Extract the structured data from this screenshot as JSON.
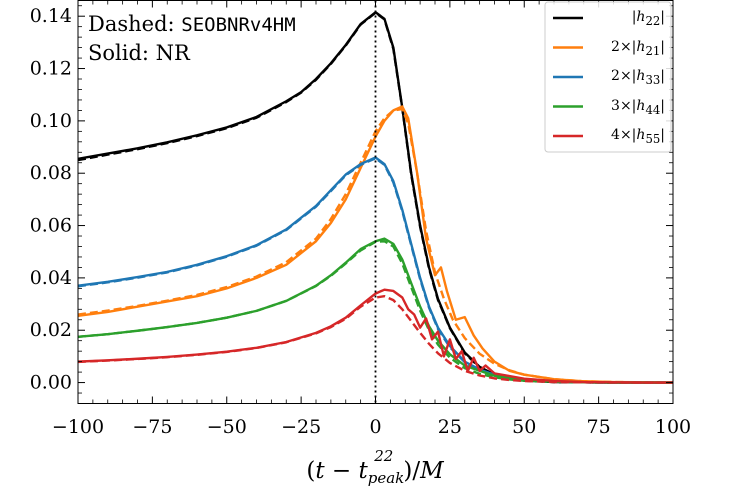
{
  "chart_data": {
    "type": "line",
    "xlabel": "(t − t_peak^22)/M",
    "ylabel": "",
    "xlim": [
      -100,
      100
    ],
    "ylim": [
      -0.008,
      0.146
    ],
    "xticks": [
      -100,
      -75,
      -50,
      -25,
      0,
      25,
      50,
      75,
      100
    ],
    "xtick_labels": [
      "−100",
      "−75",
      "−50",
      "−25",
      "0",
      "25",
      "50",
      "75",
      "100"
    ],
    "yticks": [
      0.0,
      0.02,
      0.04,
      0.06,
      0.08,
      0.1,
      0.12,
      0.14
    ],
    "ytick_labels": [
      "0.00",
      "0.02",
      "0.04",
      "0.06",
      "0.08",
      "0.10",
      "0.12",
      "0.14"
    ],
    "grid": false,
    "legend_position": "top-right",
    "annotations": {
      "dashed_prefix": "Dashed: ",
      "dashed_model": "SEOBNRv4HM",
      "solid": "Solid: NR"
    },
    "peak_marker_x": 0,
    "series": [
      {
        "name": "|h22|",
        "legend_html": "|<i>h</i><sub>22</sub>|",
        "color": "#000000",
        "nr": {
          "x": [
            -100,
            -90,
            -80,
            -70,
            -60,
            -50,
            -40,
            -30,
            -25,
            -20,
            -15,
            -10,
            -5,
            0,
            3,
            6,
            9,
            12,
            15,
            18,
            21,
            25,
            30,
            35,
            40,
            50,
            60,
            70,
            80,
            90,
            100
          ],
          "y": [
            0.0855,
            0.0875,
            0.0895,
            0.0918,
            0.0945,
            0.0975,
            0.1015,
            0.1075,
            0.111,
            0.116,
            0.122,
            0.129,
            0.137,
            0.1415,
            0.139,
            0.128,
            0.105,
            0.08,
            0.06,
            0.044,
            0.032,
            0.021,
            0.0115,
            0.006,
            0.003,
            0.0008,
            0.0002,
            0.0001,
            0.0,
            0.0,
            0.0
          ]
        },
        "seob": {
          "x": [
            -100,
            -90,
            -80,
            -70,
            -60,
            -50,
            -40,
            -30,
            -25,
            -20,
            -15,
            -10,
            -5,
            0,
            3,
            6,
            9,
            12,
            15,
            18,
            21,
            25,
            30,
            35,
            40,
            50,
            60,
            70,
            80,
            90,
            100
          ],
          "y": [
            0.085,
            0.0871,
            0.0892,
            0.0915,
            0.0942,
            0.0972,
            0.1012,
            0.1072,
            0.1108,
            0.1157,
            0.1218,
            0.1288,
            0.1368,
            0.1413,
            0.1388,
            0.1275,
            0.1048,
            0.0795,
            0.0595,
            0.0435,
            0.0316,
            0.0208,
            0.0112,
            0.0058,
            0.0029,
            0.0007,
            0.0002,
            0.0001,
            0.0,
            0.0,
            0.0
          ]
        }
      },
      {
        "name": "2×|h21|",
        "legend_html": "2×|<i>h</i><sub>21</sub>|",
        "color": "#ff7f0e",
        "nr": {
          "x": [
            -100,
            -90,
            -80,
            -70,
            -60,
            -50,
            -40,
            -30,
            -20,
            -15,
            -10,
            -5,
            0,
            3,
            6,
            9,
            11,
            14,
            17,
            20,
            22,
            24,
            27,
            30,
            33,
            36,
            40,
            45,
            50,
            60,
            70,
            80,
            90,
            100
          ],
          "y": [
            0.0255,
            0.027,
            0.029,
            0.031,
            0.033,
            0.036,
            0.04,
            0.045,
            0.054,
            0.061,
            0.07,
            0.082,
            0.094,
            0.1,
            0.104,
            0.1055,
            0.101,
            0.08,
            0.055,
            0.041,
            0.044,
            0.035,
            0.024,
            0.025,
            0.018,
            0.013,
            0.008,
            0.0045,
            0.003,
            0.0013,
            0.0005,
            0.0002,
            0.0001,
            0.0
          ]
        },
        "seob": {
          "x": [
            -100,
            -90,
            -80,
            -70,
            -60,
            -50,
            -40,
            -30,
            -20,
            -15,
            -10,
            -5,
            0,
            3,
            6,
            9,
            11,
            14,
            17,
            20,
            23,
            26,
            30,
            35,
            40,
            45,
            50,
            60,
            70,
            80,
            90,
            100
          ],
          "y": [
            0.026,
            0.0275,
            0.0293,
            0.0313,
            0.0335,
            0.0365,
            0.0405,
            0.046,
            0.055,
            0.0625,
            0.072,
            0.084,
            0.096,
            0.101,
            0.104,
            0.1045,
            0.099,
            0.08,
            0.058,
            0.042,
            0.032,
            0.024,
            0.017,
            0.011,
            0.0072,
            0.0047,
            0.003,
            0.0013,
            0.0005,
            0.0002,
            0.0001,
            0.0
          ]
        }
      },
      {
        "name": "2×|h33|",
        "legend_html": "2×|<i>h</i><sub>33</sub>|",
        "color": "#1f77b4",
        "nr": {
          "x": [
            -100,
            -90,
            -80,
            -70,
            -60,
            -50,
            -40,
            -30,
            -20,
            -15,
            -10,
            -5,
            0,
            3,
            6,
            9,
            12,
            15,
            18,
            21,
            25,
            30,
            35,
            40,
            45,
            50,
            60,
            70,
            80,
            90,
            100
          ],
          "y": [
            0.037,
            0.0385,
            0.0403,
            0.0423,
            0.045,
            0.0483,
            0.0525,
            0.0585,
            0.0675,
            0.0735,
            0.0795,
            0.0835,
            0.086,
            0.0835,
            0.077,
            0.066,
            0.053,
            0.04,
            0.029,
            0.021,
            0.014,
            0.008,
            0.005,
            0.003,
            0.0018,
            0.0011,
            0.0004,
            0.0001,
            0.0,
            0.0,
            0.0
          ]
        },
        "seob": {
          "x": [
            -100,
            -90,
            -80,
            -70,
            -60,
            -50,
            -40,
            -30,
            -20,
            -15,
            -10,
            -5,
            0,
            3,
            6,
            9,
            12,
            15,
            18,
            21,
            25,
            30,
            35,
            40,
            45,
            50,
            60,
            70,
            80,
            90,
            100
          ],
          "y": [
            0.0368,
            0.0383,
            0.0401,
            0.0421,
            0.0448,
            0.0481,
            0.0523,
            0.0583,
            0.0672,
            0.0732,
            0.0792,
            0.0832,
            0.0857,
            0.0832,
            0.0765,
            0.0655,
            0.0525,
            0.0395,
            0.0286,
            0.0205,
            0.0135,
            0.0078,
            0.0048,
            0.0029,
            0.0017,
            0.001,
            0.0004,
            0.0001,
            0.0,
            0.0,
            0.0
          ]
        }
      },
      {
        "name": "3×|h44|",
        "legend_html": "3×|<i>h</i><sub>44</sub>|",
        "color": "#2ca02c",
        "nr": {
          "x": [
            -100,
            -90,
            -80,
            -70,
            -60,
            -50,
            -40,
            -30,
            -20,
            -15,
            -10,
            -5,
            0,
            3,
            6,
            9,
            12,
            15,
            18,
            21,
            25,
            30,
            35,
            40,
            45,
            50,
            60,
            70,
            80,
            90,
            100
          ],
          "y": [
            0.0175,
            0.0185,
            0.0198,
            0.0212,
            0.0228,
            0.0248,
            0.0274,
            0.0312,
            0.037,
            0.041,
            0.0458,
            0.051,
            0.054,
            0.055,
            0.053,
            0.047,
            0.038,
            0.029,
            0.0215,
            0.016,
            0.0108,
            0.0065,
            0.0045,
            0.0026,
            0.0018,
            0.001,
            0.0004,
            0.0001,
            0.0,
            0.0,
            0.0
          ]
        },
        "seob": {
          "x": [
            -100,
            -90,
            -80,
            -70,
            -60,
            -50,
            -40,
            -30,
            -20,
            -15,
            -10,
            -5,
            0,
            3,
            6,
            9,
            12,
            15,
            18,
            21,
            25,
            30,
            35,
            40,
            45,
            50,
            60,
            70,
            80,
            90,
            100
          ],
          "y": [
            0.0175,
            0.0185,
            0.0198,
            0.0212,
            0.0228,
            0.0248,
            0.0274,
            0.0312,
            0.0369,
            0.0408,
            0.0455,
            0.0505,
            0.0538,
            0.054,
            0.052,
            0.0455,
            0.0365,
            0.0275,
            0.02,
            0.0145,
            0.0095,
            0.0055,
            0.0033,
            0.002,
            0.0012,
            0.0007,
            0.0003,
            0.0001,
            0.0,
            0.0,
            0.0
          ]
        }
      },
      {
        "name": "4×|h55|",
        "legend_html": "4×|<i>h</i><sub>55</sub>|",
        "color": "#d62728",
        "nr": {
          "x": [
            -100,
            -90,
            -80,
            -70,
            -60,
            -50,
            -40,
            -30,
            -20,
            -15,
            -10,
            -5,
            0,
            3,
            6,
            9,
            11,
            13,
            15,
            17,
            19,
            21,
            23,
            25,
            27,
            29,
            31,
            33,
            35,
            37,
            40,
            45,
            50,
            60,
            70,
            80,
            90,
            100
          ],
          "y": [
            0.008,
            0.0085,
            0.0091,
            0.0098,
            0.0107,
            0.0118,
            0.0133,
            0.0155,
            0.019,
            0.0215,
            0.0248,
            0.0295,
            0.034,
            0.0355,
            0.035,
            0.0325,
            0.028,
            0.026,
            0.021,
            0.0245,
            0.0165,
            0.0195,
            0.01,
            0.0165,
            0.009,
            0.012,
            0.0045,
            0.0095,
            0.0045,
            0.0065,
            0.0035,
            0.0025,
            0.0015,
            0.0006,
            0.0002,
            0.0001,
            0.0,
            0.0
          ]
        },
        "seob": {
          "x": [
            -100,
            -90,
            -80,
            -70,
            -60,
            -50,
            -40,
            -30,
            -20,
            -15,
            -10,
            -5,
            0,
            3,
            6,
            9,
            12,
            15,
            18,
            21,
            25,
            30,
            35,
            40,
            45,
            50,
            60,
            70,
            80,
            90,
            100
          ],
          "y": [
            0.0079,
            0.0084,
            0.009,
            0.0097,
            0.0106,
            0.0117,
            0.0132,
            0.0154,
            0.0188,
            0.0212,
            0.0244,
            0.029,
            0.0325,
            0.033,
            0.0315,
            0.028,
            0.0235,
            0.019,
            0.0148,
            0.0112,
            0.0075,
            0.0045,
            0.0027,
            0.0016,
            0.001,
            0.0006,
            0.0002,
            0.0001,
            0.0,
            0.0,
            0.0
          ]
        }
      }
    ]
  }
}
